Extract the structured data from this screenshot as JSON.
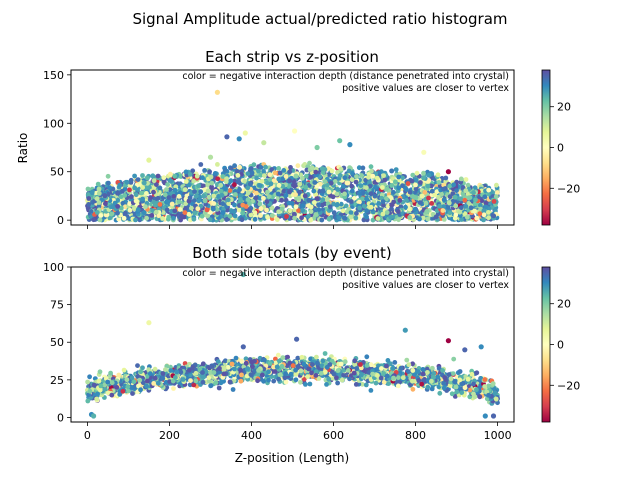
{
  "figure": {
    "suptitle": "Signal Amplitude actual/predicted ratio histogram"
  },
  "chart_data": [
    {
      "type": "scatter",
      "title": "Each strip vs z-position",
      "xlabel": "",
      "ylabel": "Ratio",
      "xlim": [
        -40,
        1040
      ],
      "ylim": [
        -5,
        155
      ],
      "xticks": [
        0,
        200,
        400,
        600,
        800,
        1000
      ],
      "xtick_labels_visible": false,
      "yticks": [
        0,
        50,
        100,
        150
      ],
      "annotation": [
        "color = negative interaction depth (distance penetrated into crystal)",
        "positive values are closer to vertex"
      ],
      "colorbar": {
        "cmap": "Spectral",
        "range": [
          -38,
          38
        ],
        "ticks": [
          -20,
          0,
          20
        ]
      },
      "points_description": "dense band of ~thousands of strip-level points spanning z 0-1000, ratio mostly 0-55",
      "outliers": [
        {
          "x": 317,
          "y": 132,
          "c": -8
        },
        {
          "x": 340,
          "y": 86,
          "c": 35
        },
        {
          "x": 370,
          "y": 84,
          "c": 30
        },
        {
          "x": 385,
          "y": 90,
          "c": 5
        },
        {
          "x": 430,
          "y": 80,
          "c": 12
        },
        {
          "x": 505,
          "y": 92,
          "c": 0
        },
        {
          "x": 560,
          "y": 75,
          "c": 20
        },
        {
          "x": 615,
          "y": 82,
          "c": 22
        },
        {
          "x": 640,
          "y": 78,
          "c": 30
        },
        {
          "x": 820,
          "y": 70,
          "c": 2
        },
        {
          "x": 880,
          "y": 50,
          "c": -38
        },
        {
          "x": 150,
          "y": 62,
          "c": 8
        },
        {
          "x": 300,
          "y": 65,
          "c": 14
        }
      ]
    },
    {
      "type": "scatter",
      "title": "Both side totals (by event)",
      "xlabel": "Z-position (Length)",
      "ylabel": "",
      "xlim": [
        -40,
        1040
      ],
      "ylim": [
        -3,
        100
      ],
      "xticks": [
        0,
        200,
        400,
        600,
        800,
        1000
      ],
      "yticks": [
        0,
        25,
        50,
        75,
        100
      ],
      "annotation": [
        "color = negative interaction depth (distance penetrated into crystal)",
        "positive values are closer to vertex"
      ],
      "colorbar": {
        "cmap": "Spectral",
        "range": [
          -38,
          38
        ],
        "ticks": [
          -20,
          0,
          20
        ]
      },
      "points_description": "event totals forming an arch: ~18 at z=0, peak ~32 near z=450-550, ~15 at z=1000; cluster near (0-20, 0-3)",
      "outliers": [
        {
          "x": 150,
          "y": 63,
          "c": 5
        },
        {
          "x": 380,
          "y": 95,
          "c": 25
        },
        {
          "x": 510,
          "y": 52,
          "c": 35
        },
        {
          "x": 775,
          "y": 58,
          "c": 28
        },
        {
          "x": 880,
          "y": 51,
          "c": -38
        },
        {
          "x": 920,
          "y": 45,
          "c": 35
        },
        {
          "x": 960,
          "y": 47,
          "c": 30
        },
        {
          "x": 380,
          "y": 47,
          "c": 35
        },
        {
          "x": 10,
          "y": 2,
          "c": 30
        },
        {
          "x": 15,
          "y": 1,
          "c": 25
        },
        {
          "x": 970,
          "y": 1,
          "c": 30
        },
        {
          "x": 990,
          "y": 1,
          "c": 35
        }
      ]
    }
  ]
}
